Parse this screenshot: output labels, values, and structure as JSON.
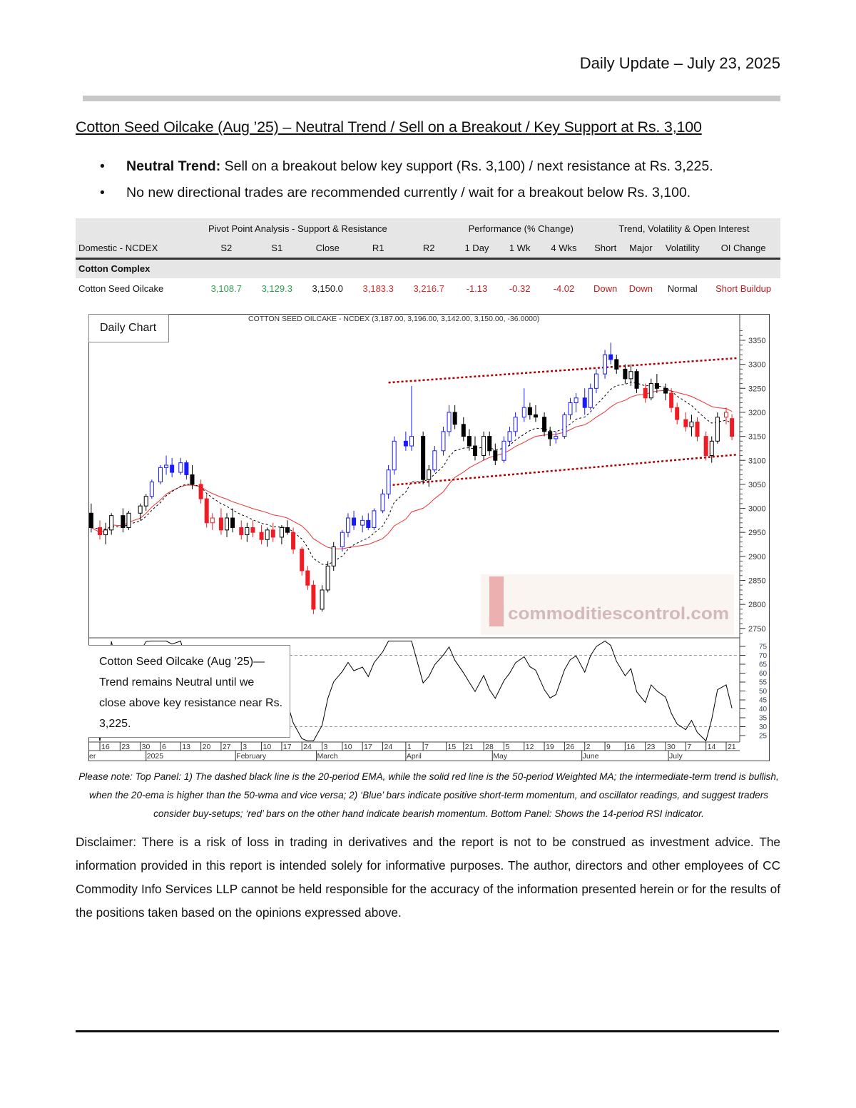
{
  "header": {
    "title": "Daily Update – July 23, 2025"
  },
  "report": {
    "title": "Cotton Seed Oilcake (Aug   ’25) – Neutral Trend / Sell on a Breakout / Key Support at Rs. 3,100",
    "bullets": [
      {
        "bold": "Neutral Trend:",
        "text": " Sell on a breakout below key support (Rs. 3,100) / next resistance at Rs. 3,225."
      },
      {
        "bold": "",
        "text": "No new directional trades are recommended currently / wait for a breakout below Rs. 3,100."
      }
    ]
  },
  "table": {
    "groups": [
      "Pivot Point Analysis - Support & Resistance",
      "Performance (% Change)",
      "Trend, Volatility & Open Interest"
    ],
    "headers": [
      "Domestic - NCDEX",
      "S2",
      "S1",
      "Close",
      "R1",
      "R2",
      "1 Day",
      "1 Wk",
      "4 Wks",
      "Short",
      "Major",
      "Volatility",
      "OI Change"
    ],
    "section": "Cotton Complex",
    "row": [
      "Cotton Seed Oilcake",
      "3,108.7",
      "3,129.3",
      "3,150.0",
      "3,183.3",
      "3,216.7",
      "-1.13",
      "-0.32",
      "-4.02",
      "Down",
      "Down",
      "Normal",
      "Short Buildup"
    ],
    "colors": {
      "support": "#2e9e4f",
      "resistance": "#d42a2a",
      "negative": "#b52020"
    }
  },
  "chart_data": {
    "type": "candlestick",
    "title": "COTTON SEED OILCAKE - NCDEX (3,187.00, 3,196.00, 3,142.00, 3,150.00, -36.0000)",
    "label": "Daily Chart",
    "note": "Cotton Seed Oilcake (Aug   ’25)— Trend remains Neutral until we close above key resistance near Rs. 3,225.",
    "ylim": [
      2730,
      3380
    ],
    "yticks": [
      2750,
      2800,
      2850,
      2900,
      2950,
      3000,
      3050,
      3100,
      3150,
      3200,
      3250,
      3300,
      3350
    ],
    "rsi_ylim": [
      25,
      75
    ],
    "rsi_yticks": [
      75,
      70,
      65,
      60,
      55,
      50,
      45,
      40,
      35,
      30,
      25
    ],
    "rsi_levels": [
      70,
      30
    ],
    "xticks": [
      [
        "2024-12-16",
        "16"
      ],
      [
        "2024-12-23",
        "23"
      ],
      [
        "2024-12-30",
        "30"
      ],
      [
        "2025-01-06",
        "6"
      ],
      [
        "2025-01-13",
        "13"
      ],
      [
        "2025-01-20",
        "20"
      ],
      [
        "2025-01-27",
        "27"
      ],
      [
        "2025-02-03",
        "3"
      ],
      [
        "2025-02-10",
        "10"
      ],
      [
        "2025-02-17",
        "17"
      ],
      [
        "2025-02-24",
        "24"
      ],
      [
        "2025-03-03",
        "3"
      ],
      [
        "2025-03-10",
        "10"
      ],
      [
        "2025-03-17",
        "17"
      ],
      [
        "2025-03-24",
        "24"
      ],
      [
        "2025-04-01",
        "1"
      ],
      [
        "2025-04-07",
        "7"
      ],
      [
        "2025-04-15",
        "15"
      ],
      [
        "2025-04-21",
        "21"
      ],
      [
        "2025-04-28",
        "28"
      ],
      [
        "2025-05-05",
        "5"
      ],
      [
        "2025-05-12",
        "12"
      ],
      [
        "2025-05-19",
        "19"
      ],
      [
        "2025-05-26",
        "26"
      ],
      [
        "2025-06-02",
        "2"
      ],
      [
        "2025-06-09",
        "9"
      ],
      [
        "2025-06-16",
        "16"
      ],
      [
        "2025-06-23",
        "23"
      ],
      [
        "2025-06-30",
        "30"
      ],
      [
        "2025-07-07",
        "7"
      ],
      [
        "2025-07-14",
        "14"
      ],
      [
        "2025-07-21",
        "21"
      ]
    ],
    "months": [
      [
        "2024-12-12",
        "er"
      ],
      [
        "2025-01-01",
        "2025"
      ],
      [
        "2025-02-01",
        "February"
      ],
      [
        "2025-03-01",
        "March"
      ],
      [
        "2025-04-01",
        "April"
      ],
      [
        "2025-05-01",
        "May"
      ],
      [
        "2025-06-01",
        "June"
      ],
      [
        "2025-07-01",
        "July"
      ]
    ],
    "colors": {
      "blue": "#1a1aff",
      "red": "#ee1c24",
      "black": "#000000",
      "ema": "#000000",
      "wma": "#ee3333",
      "trend": "#b00000"
    },
    "lines": [
      {
        "name": "20-period EMA",
        "style": "dashed black"
      },
      {
        "name": "50-period Weighted MA",
        "style": "solid red"
      }
    ],
    "trendlines": [
      {
        "from": [
          "2025-03-26",
          3262
        ],
        "to": [
          "2025-07-25",
          3313
        ]
      },
      {
        "from": [
          "2025-03-26",
          3048
        ],
        "to": [
          "2025-07-25",
          3112
        ]
      }
    ],
    "candles": [
      [
        "2024-12-13",
        2990,
        3010,
        2950,
        2960,
        "black"
      ],
      [
        "2024-12-16",
        2960,
        2975,
        2935,
        2945,
        "red"
      ],
      [
        "2024-12-18",
        2945,
        2970,
        2925,
        2955,
        "black"
      ],
      [
        "2024-12-20",
        2955,
        2990,
        2945,
        2985,
        "black"
      ],
      [
        "2024-12-24",
        2985,
        3000,
        2950,
        2960,
        "black"
      ],
      [
        "2024-12-26",
        2960,
        2995,
        2955,
        2990,
        "black"
      ],
      [
        "2024-12-30",
        2990,
        3010,
        2975,
        3005,
        "black"
      ],
      [
        "2025-01-01",
        3005,
        3030,
        2995,
        3025,
        "black"
      ],
      [
        "2025-01-03",
        3025,
        3060,
        3020,
        3055,
        "blue"
      ],
      [
        "2025-01-06",
        3055,
        3090,
        3050,
        3085,
        "blue"
      ],
      [
        "2025-01-08",
        3085,
        3110,
        3070,
        3090,
        "blue"
      ],
      [
        "2025-01-10",
        3090,
        3105,
        3065,
        3075,
        "blue"
      ],
      [
        "2025-01-13",
        3075,
        3105,
        3070,
        3095,
        "blue"
      ],
      [
        "2025-01-15",
        3095,
        3100,
        3060,
        3070,
        "blue"
      ],
      [
        "2025-01-17",
        3070,
        3090,
        3040,
        3050,
        "black"
      ],
      [
        "2025-01-20",
        3050,
        3060,
        3010,
        3020,
        "red"
      ],
      [
        "2025-01-22",
        3020,
        3030,
        2960,
        2970,
        "red"
      ],
      [
        "2025-01-24",
        2970,
        2990,
        2955,
        2980,
        "red"
      ],
      [
        "2025-01-27",
        2980,
        3000,
        2945,
        2955,
        "red"
      ],
      [
        "2025-01-29",
        2955,
        2990,
        2940,
        2980,
        "black"
      ],
      [
        "2025-01-31",
        2980,
        3000,
        2950,
        2960,
        "black"
      ],
      [
        "2025-02-03",
        2960,
        2975,
        2935,
        2945,
        "red"
      ],
      [
        "2025-02-05",
        2945,
        2970,
        2930,
        2960,
        "black"
      ],
      [
        "2025-02-07",
        2960,
        2975,
        2940,
        2950,
        "red"
      ],
      [
        "2025-02-10",
        2950,
        2965,
        2925,
        2935,
        "red"
      ],
      [
        "2025-02-12",
        2935,
        2960,
        2920,
        2955,
        "black"
      ],
      [
        "2025-02-14",
        2955,
        2970,
        2930,
        2940,
        "red"
      ],
      [
        "2025-02-17",
        2940,
        2965,
        2925,
        2960,
        "black"
      ],
      [
        "2025-02-19",
        2960,
        2975,
        2945,
        2950,
        "black"
      ],
      [
        "2025-02-21",
        2950,
        2960,
        2905,
        2915,
        "red"
      ],
      [
        "2025-02-24",
        2915,
        2920,
        2860,
        2870,
        "red"
      ],
      [
        "2025-02-26",
        2870,
        2880,
        2830,
        2840,
        "red"
      ],
      [
        "2025-02-28",
        2840,
        2850,
        2780,
        2790,
        "red"
      ],
      [
        "2025-03-03",
        2790,
        2840,
        2785,
        2830,
        "black"
      ],
      [
        "2025-03-05",
        2830,
        2890,
        2825,
        2880,
        "black"
      ],
      [
        "2025-03-07",
        2880,
        2930,
        2870,
        2920,
        "black"
      ],
      [
        "2025-03-10",
        2920,
        2955,
        2910,
        2950,
        "blue"
      ],
      [
        "2025-03-12",
        2950,
        2990,
        2940,
        2980,
        "blue"
      ],
      [
        "2025-03-14",
        2980,
        2995,
        2955,
        2965,
        "blue"
      ],
      [
        "2025-03-17",
        2965,
        2985,
        2950,
        2975,
        "blue"
      ],
      [
        "2025-03-19",
        2975,
        2990,
        2955,
        2960,
        "blue"
      ],
      [
        "2025-03-21",
        2960,
        3000,
        2955,
        2995,
        "blue"
      ],
      [
        "2025-03-24",
        2995,
        3040,
        2990,
        3030,
        "blue"
      ],
      [
        "2025-03-26",
        3030,
        3090,
        3020,
        3080,
        "blue"
      ],
      [
        "2025-03-28",
        3080,
        3150,
        3070,
        3140,
        "blue"
      ],
      [
        "2025-04-01",
        3140,
        3160,
        3120,
        3130,
        "blue"
      ],
      [
        "2025-04-03",
        3130,
        3255,
        3120,
        3150,
        "blue"
      ],
      [
        "2025-04-07",
        3150,
        3160,
        3050,
        3060,
        "black"
      ],
      [
        "2025-04-09",
        3060,
        3090,
        3045,
        3080,
        "black"
      ],
      [
        "2025-04-11",
        3080,
        3130,
        3075,
        3120,
        "blue"
      ],
      [
        "2025-04-14",
        3120,
        3170,
        3110,
        3160,
        "blue"
      ],
      [
        "2025-04-16",
        3160,
        3215,
        3150,
        3200,
        "blue"
      ],
      [
        "2025-04-18",
        3200,
        3215,
        3165,
        3175,
        "black"
      ],
      [
        "2025-04-21",
        3175,
        3190,
        3140,
        3150,
        "black"
      ],
      [
        "2025-04-23",
        3150,
        3165,
        3120,
        3130,
        "black"
      ],
      [
        "2025-04-25",
        3130,
        3150,
        3100,
        3110,
        "black"
      ],
      [
        "2025-04-28",
        3110,
        3160,
        3100,
        3150,
        "black"
      ],
      [
        "2025-04-30",
        3150,
        3160,
        3110,
        3120,
        "black"
      ],
      [
        "2025-05-02",
        3120,
        3135,
        3090,
        3100,
        "black"
      ],
      [
        "2025-05-05",
        3100,
        3150,
        3095,
        3140,
        "blue"
      ],
      [
        "2025-05-07",
        3140,
        3170,
        3130,
        3160,
        "blue"
      ],
      [
        "2025-05-09",
        3160,
        3200,
        3150,
        3190,
        "blue"
      ],
      [
        "2025-05-12",
        3190,
        3250,
        3180,
        3210,
        "blue"
      ],
      [
        "2025-05-14",
        3210,
        3220,
        3185,
        3195,
        "black"
      ],
      [
        "2025-05-16",
        3195,
        3215,
        3180,
        3190,
        "black"
      ],
      [
        "2025-05-19",
        3190,
        3200,
        3150,
        3160,
        "black"
      ],
      [
        "2025-05-21",
        3160,
        3170,
        3130,
        3145,
        "black"
      ],
      [
        "2025-05-23",
        3145,
        3160,
        3135,
        3150,
        "blue"
      ],
      [
        "2025-05-26",
        3150,
        3200,
        3145,
        3195,
        "blue"
      ],
      [
        "2025-05-28",
        3195,
        3230,
        3185,
        3220,
        "blue"
      ],
      [
        "2025-05-30",
        3220,
        3240,
        3200,
        3230,
        "blue"
      ],
      [
        "2025-06-02",
        3230,
        3250,
        3195,
        3210,
        "blue"
      ],
      [
        "2025-06-04",
        3210,
        3260,
        3205,
        3250,
        "blue"
      ],
      [
        "2025-06-06",
        3250,
        3290,
        3240,
        3280,
        "blue"
      ],
      [
        "2025-06-09",
        3280,
        3330,
        3270,
        3320,
        "blue"
      ],
      [
        "2025-06-11",
        3320,
        3345,
        3300,
        3310,
        "blue"
      ],
      [
        "2025-06-13",
        3310,
        3320,
        3280,
        3290,
        "black"
      ],
      [
        "2025-06-16",
        3290,
        3300,
        3260,
        3270,
        "black"
      ],
      [
        "2025-06-18",
        3270,
        3300,
        3255,
        3285,
        "black"
      ],
      [
        "2025-06-20",
        3285,
        3290,
        3240,
        3250,
        "black"
      ],
      [
        "2025-06-23",
        3250,
        3260,
        3220,
        3230,
        "red"
      ],
      [
        "2025-06-25",
        3230,
        3270,
        3225,
        3260,
        "black"
      ],
      [
        "2025-06-27",
        3260,
        3280,
        3240,
        3250,
        "black"
      ],
      [
        "2025-06-30",
        3250,
        3260,
        3225,
        3240,
        "black"
      ],
      [
        "2025-07-02",
        3240,
        3250,
        3200,
        3210,
        "red"
      ],
      [
        "2025-07-04",
        3210,
        3220,
        3175,
        3185,
        "red"
      ],
      [
        "2025-07-07",
        3185,
        3200,
        3160,
        3170,
        "red"
      ],
      [
        "2025-07-09",
        3170,
        3195,
        3150,
        3180,
        "black"
      ],
      [
        "2025-07-11",
        3180,
        3190,
        3140,
        3150,
        "red"
      ],
      [
        "2025-07-14",
        3150,
        3160,
        3100,
        3110,
        "red"
      ],
      [
        "2025-07-16",
        3110,
        3150,
        3095,
        3140,
        "black"
      ],
      [
        "2025-07-18",
        3140,
        3200,
        3135,
        3190,
        "black"
      ],
      [
        "2025-07-21",
        3190,
        3210,
        3175,
        3200,
        "red"
      ],
      [
        "2025-07-23",
        3187,
        3196,
        3142,
        3150,
        "red"
      ]
    ],
    "watermark": "commoditiescontrol.com"
  },
  "caption": "Please note: Top Panel: 1) The dashed black line is the 20-period EMA, while the solid red line is the 50-period Weighted MA; the intermediate-term trend is bullish, when the 20-ema is higher than the 50-wma and vice versa; 2)   ‘Blue’   bars indicate positive short-term momentum, and oscillator readings, and suggest traders consider buy-setups;   ‘red’   bars on the other hand indicate bearish momentum. Bottom Panel: Shows the 14-period RSI indicator.",
  "disclaimer": "Disclaimer: There is a risk of loss in trading in derivatives and the report is not to be construed as investment advice. The information provided in this report is intended solely for informative purposes. The author, directors and other employees of CC Commodity Info Services LLP cannot be held responsible for the accuracy of the information presented herein or for the results of the positions taken based on the opinions expressed above."
}
